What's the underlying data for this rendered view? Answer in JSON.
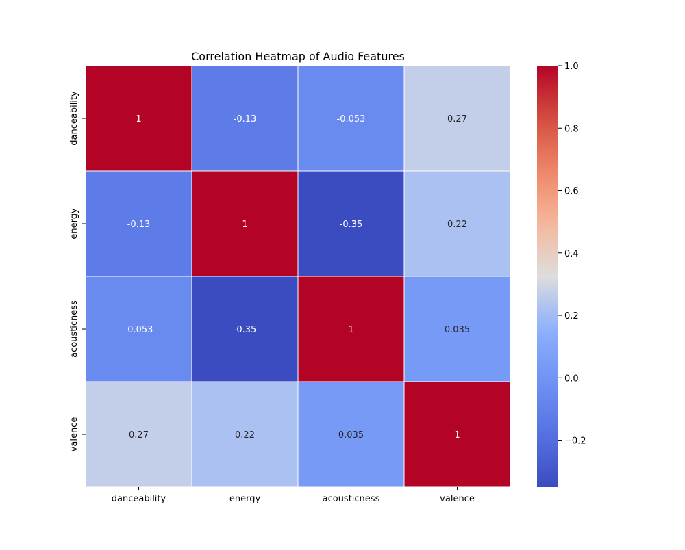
{
  "chart_data": {
    "type": "heatmap",
    "title": "Correlation Heatmap of Audio Features",
    "xlabel": "",
    "ylabel": "",
    "row_labels": [
      "danceability",
      "energy",
      "acousticness",
      "valence"
    ],
    "col_labels": [
      "danceability",
      "energy",
      "acousticness",
      "valence"
    ],
    "matrix": [
      [
        1,
        -0.13,
        -0.053,
        0.27
      ],
      [
        -0.13,
        1,
        -0.35,
        0.22
      ],
      [
        -0.053,
        -0.35,
        1,
        0.035
      ],
      [
        0.27,
        0.22,
        0.035,
        1
      ]
    ],
    "cell_labels": [
      [
        "1",
        "-0.13",
        "-0.053",
        "0.27"
      ],
      [
        "-0.13",
        "1",
        "-0.35",
        "0.22"
      ],
      [
        "-0.053",
        "-0.35",
        "1",
        "0.035"
      ],
      [
        "0.27",
        "0.22",
        "0.035",
        "1"
      ]
    ],
    "colormap": "coolwarm",
    "colorbar": {
      "range": [
        -0.35,
        1.0
      ],
      "ticks": [
        1.0,
        0.8,
        0.6,
        0.4,
        0.2,
        0.0,
        -0.2
      ],
      "tick_labels": [
        "1.0",
        "0.8",
        "0.6",
        "0.4",
        "0.2",
        "0.0",
        "−0.2"
      ]
    },
    "grid": false,
    "legend": "colorbar-right"
  }
}
